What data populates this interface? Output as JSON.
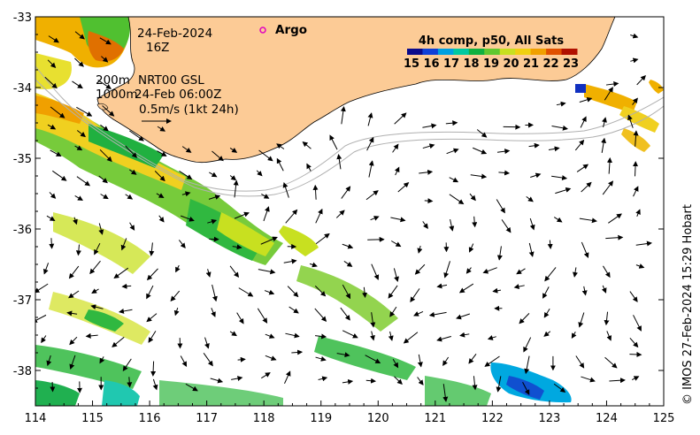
{
  "map": {
    "date": "24-Feb-2024",
    "hour": "16Z",
    "depth_200": "200m",
    "depth_1000": "1000m",
    "product": "NRT00 GSL",
    "product_time": "24-Feb 06:00Z",
    "scale_label": "0.5m/s (1kt 24h)",
    "argo_label": "Argo",
    "credit": "© IMOS 27-Feb-2024 15:29 Hobart",
    "x_ticks": [
      "114",
      "115",
      "116",
      "117",
      "118",
      "119",
      "120",
      "121",
      "122",
      "123",
      "124",
      "125"
    ],
    "y_ticks": [
      "-33",
      "-34",
      "-35",
      "-36",
      "-37",
      "-38"
    ],
    "colorbar": {
      "title": "4h comp, p50, All Sats",
      "ticks": [
        "15",
        "16",
        "17",
        "18",
        "19",
        "20",
        "21",
        "22",
        "23"
      ],
      "min": 15,
      "max": 23,
      "colors": [
        "#0a0a8c",
        "#1040d8",
        "#00a0e0",
        "#00c8a0",
        "#10b040",
        "#60c830",
        "#c8e020",
        "#f0d010",
        "#f0a000",
        "#e05000",
        "#b01000"
      ]
    },
    "land_color": "#fccb96"
  }
}
